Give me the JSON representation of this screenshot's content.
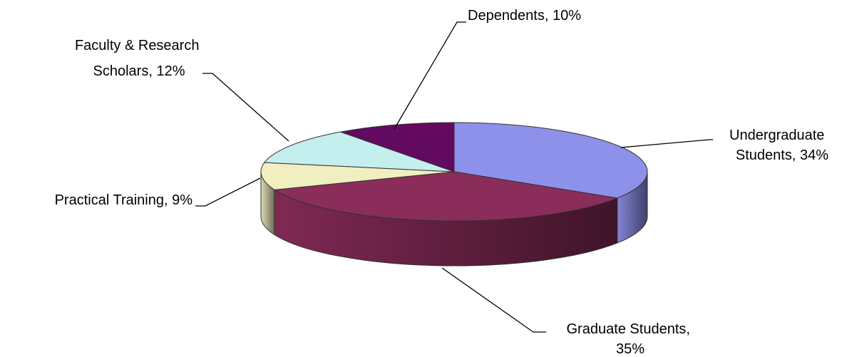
{
  "chart_data": {
    "type": "pie",
    "title": "",
    "three_d": true,
    "data_labels": "outside with leader lines",
    "legend": "none",
    "slices": [
      {
        "name": "Undergraduate Students",
        "label_lines": [
          "Undergraduate",
          "Students, 34%"
        ],
        "value": 34,
        "color": "#8e91ea"
      },
      {
        "name": "Graduate Students",
        "label_lines": [
          "Graduate Students,",
          "35%"
        ],
        "value": 35,
        "color": "#8b2d5a"
      },
      {
        "name": "Practical Training",
        "label_lines": [
          "Practical Training, 9%"
        ],
        "value": 9,
        "color": "#f1eec0"
      },
      {
        "name": "Faculty & Research Scholars",
        "label_lines": [
          "Faculty & Research",
          "Scholars, 12%"
        ],
        "value": 12,
        "color": "#c5eeef"
      },
      {
        "name": "Dependents",
        "label_lines": [
          "Dependents, 10%"
        ],
        "value": 10,
        "color": "#620a5f"
      }
    ]
  }
}
